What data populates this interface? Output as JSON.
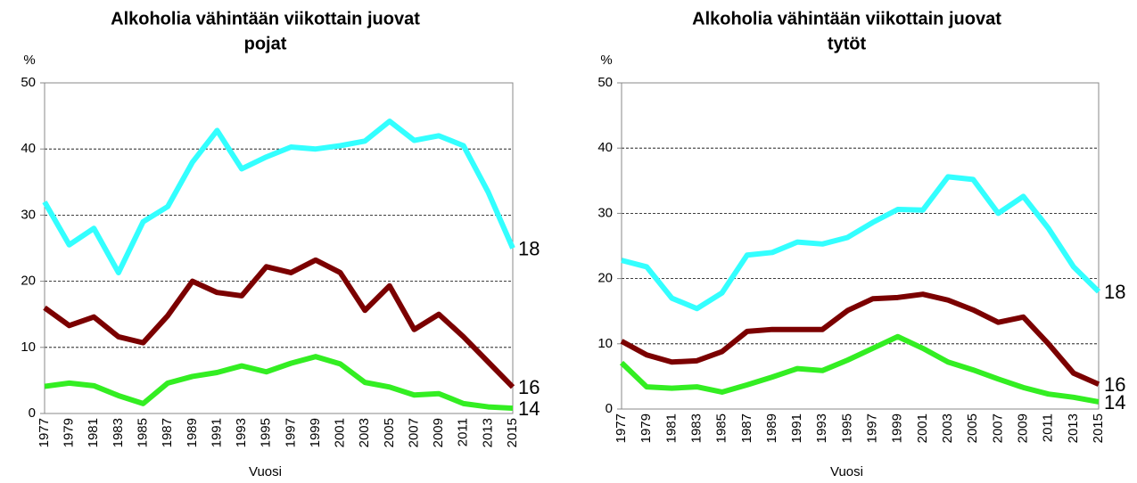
{
  "chart_data": [
    {
      "type": "line",
      "title": [
        "Alkoholia vähintään viikottain juovat",
        "pojat"
      ],
      "y_label": "%",
      "x_label": "Vuosi",
      "categories": [
        "1977",
        "1979",
        "1981",
        "1983",
        "1985",
        "1987",
        "1989",
        "1991",
        "1993",
        "1995",
        "1997",
        "1999",
        "2001",
        "2003",
        "2005",
        "2007",
        "2009",
        "2011",
        "2013",
        "2015"
      ],
      "ylim": [
        0,
        50
      ],
      "yticks": [
        0,
        10,
        20,
        30,
        40,
        50
      ],
      "grid": true,
      "series": [
        {
          "name": "18",
          "color": "#33ffff",
          "values": [
            32,
            25.5,
            28,
            21.3,
            29,
            31.3,
            38,
            42.8,
            37,
            38.8,
            40.3,
            40,
            40.5,
            41.2,
            44.2,
            41.3,
            42,
            40.5,
            33.5,
            25
          ]
        },
        {
          "name": "16",
          "color": "#7b0000",
          "values": [
            16,
            13.3,
            14.6,
            11.6,
            10.7,
            14.8,
            20,
            18.3,
            17.8,
            22.2,
            21.3,
            23.2,
            21.3,
            15.6,
            19.3,
            12.7,
            15,
            11.6,
            7.8,
            4
          ]
        },
        {
          "name": "14",
          "color": "#33ee22",
          "values": [
            4.1,
            4.6,
            4.2,
            2.7,
            1.5,
            4.6,
            5.6,
            6.2,
            7.2,
            6.3,
            7.6,
            8.6,
            7.5,
            4.7,
            4,
            2.8,
            3,
            1.5,
            1,
            0.8
          ]
        }
      ]
    },
    {
      "type": "line",
      "title": [
        "Alkoholia vähintään viikottain juovat",
        "tytöt"
      ],
      "y_label": "%",
      "x_label": "Vuosi",
      "categories": [
        "1977",
        "1979",
        "1981",
        "1983",
        "1985",
        "1987",
        "1989",
        "1991",
        "1993",
        "1995",
        "1997",
        "1999",
        "2001",
        "2003",
        "2005",
        "2007",
        "2009",
        "2011",
        "2013",
        "2015"
      ],
      "ylim": [
        0,
        50
      ],
      "yticks": [
        0,
        10,
        20,
        30,
        40,
        50
      ],
      "grid": true,
      "series": [
        {
          "name": "18",
          "color": "#33ffff",
          "values": [
            22.8,
            21.8,
            17,
            15.4,
            17.8,
            23.6,
            24,
            25.6,
            25.3,
            26.3,
            28.6,
            30.6,
            30.5,
            35.6,
            35.2,
            30,
            32.6,
            27.7,
            21.8,
            18
          ]
        },
        {
          "name": "16",
          "color": "#7b0000",
          "values": [
            10.4,
            8.3,
            7.2,
            7.4,
            8.8,
            11.9,
            12.2,
            12.2,
            12.2,
            15.1,
            16.9,
            17.1,
            17.6,
            16.7,
            15.2,
            13.3,
            14.1,
            10,
            5.5,
            3.8
          ]
        },
        {
          "name": "14",
          "color": "#33ee22",
          "values": [
            7.1,
            3.4,
            3.2,
            3.4,
            2.6,
            3.7,
            4.9,
            6.2,
            5.9,
            7.5,
            9.3,
            11.1,
            9.3,
            7.2,
            6,
            4.6,
            3.3,
            2.3,
            1.8,
            1.1
          ]
        }
      ]
    }
  ]
}
